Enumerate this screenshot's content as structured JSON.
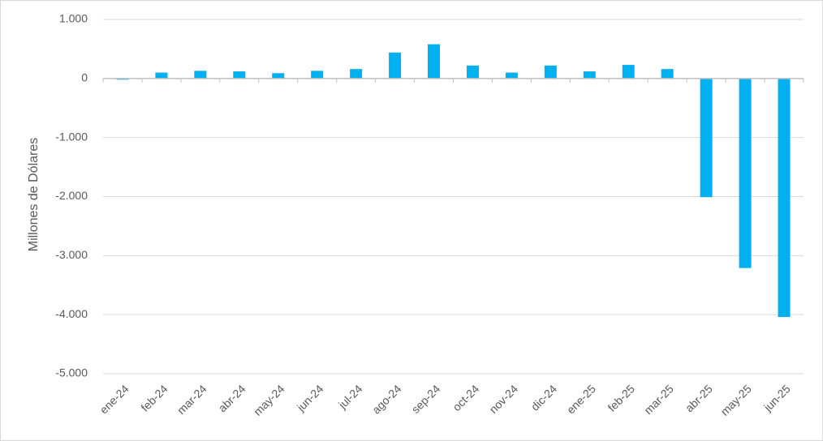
{
  "chart_data": {
    "type": "bar",
    "y_label": "Millones de Dólares",
    "categories": [
      "ene-24",
      "feb-24",
      "mar-24",
      "abr-24",
      "may-24",
      "jun-24",
      "jul-24",
      "ago-24",
      "sep-24",
      "oct-24",
      "nov-24",
      "dic-24",
      "ene-25",
      "feb-25",
      "mar-25",
      "abr-25",
      "may-25",
      "jun-25"
    ],
    "values": [
      -20,
      100,
      130,
      120,
      90,
      130,
      160,
      440,
      580,
      220,
      100,
      220,
      120,
      230,
      160,
      -2010,
      -3210,
      -4040
    ],
    "color": "#00b0f0",
    "ylim": [
      -5000,
      1000
    ],
    "yticks": [
      {
        "value": -5000,
        "label": "-5.000"
      },
      {
        "value": -4000,
        "label": "-4.000"
      },
      {
        "value": -3000,
        "label": "-3.000"
      },
      {
        "value": -2000,
        "label": "-2.000"
      },
      {
        "value": -1000,
        "label": "-1.000"
      },
      0,
      {
        "value": 1000,
        "label": "1.000"
      }
    ],
    "grid": true
  }
}
